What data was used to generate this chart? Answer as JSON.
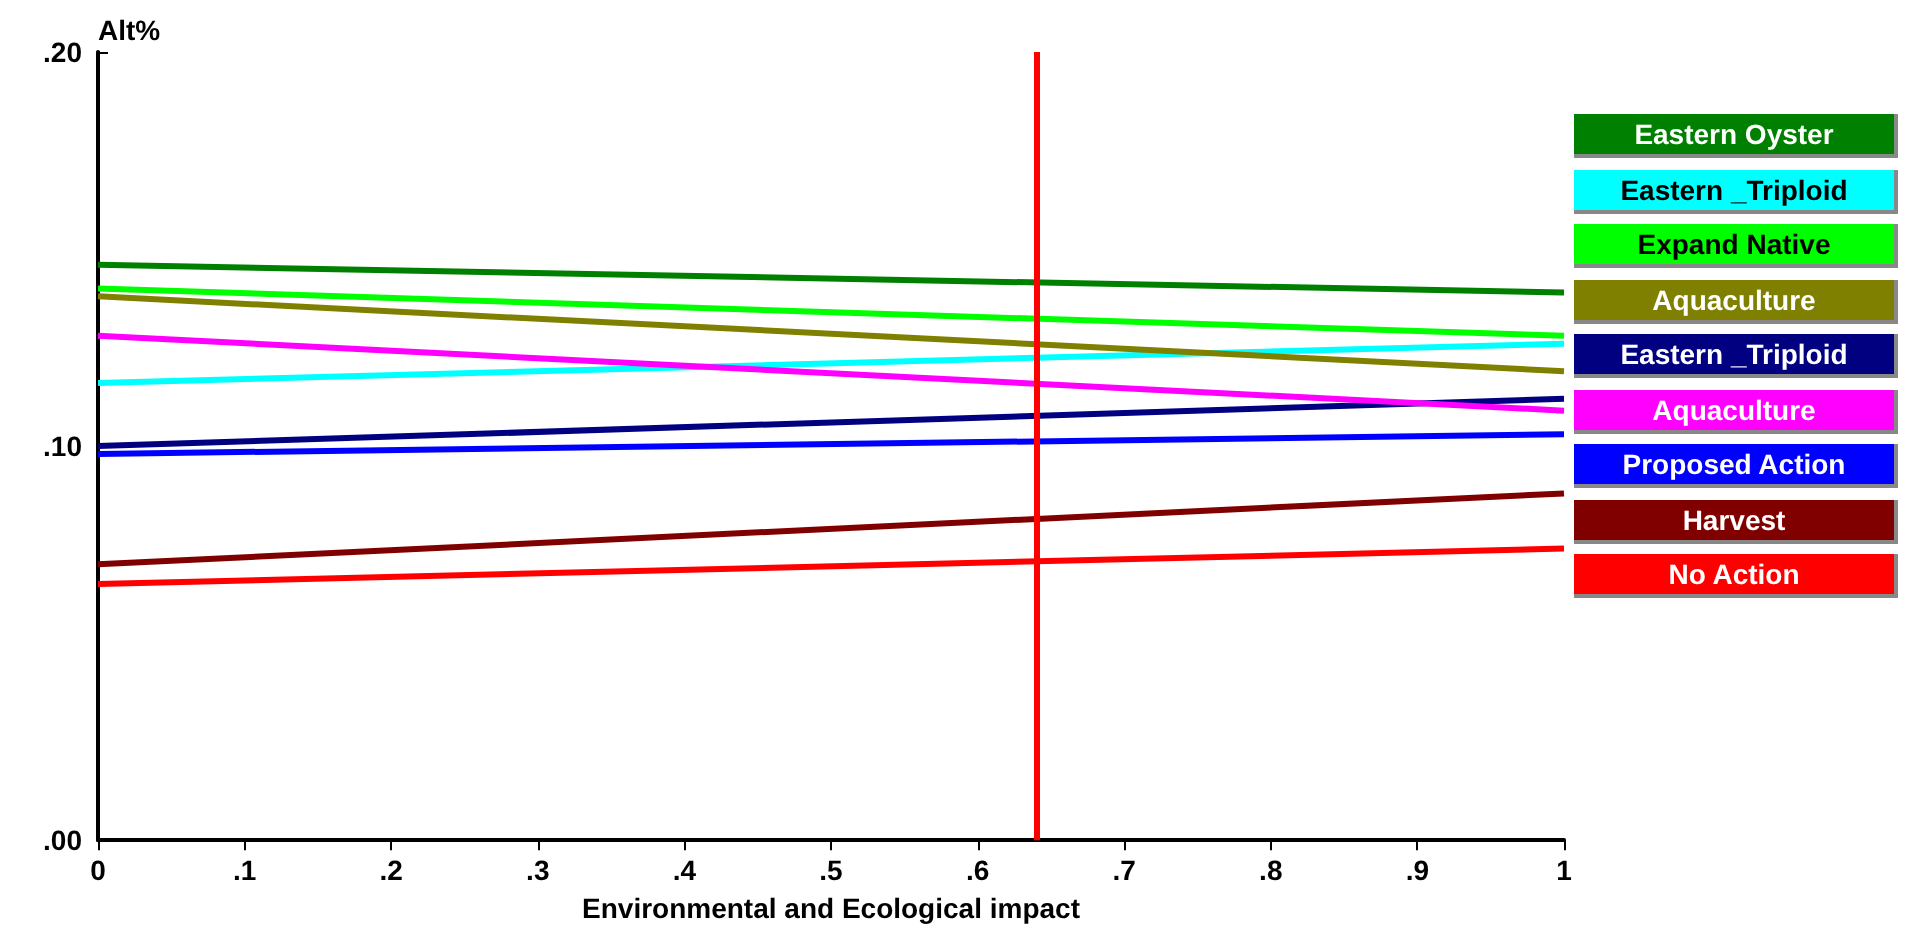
{
  "chart_data": {
    "type": "line",
    "ylabel": "Alt%",
    "xlabel": "Environmental and Ecological impact",
    "x": [
      0,
      1
    ],
    "series": [
      {
        "name": "Eastern Oyster",
        "color": "#008000",
        "values": [
          0.146,
          0.139
        ]
      },
      {
        "name": "Eastern _Triploid",
        "color": "#00ffff",
        "values": [
          0.116,
          0.126
        ]
      },
      {
        "name": "Expand Native",
        "color": "#00ff00",
        "values": [
          0.14,
          0.128
        ]
      },
      {
        "name": "Aquaculture",
        "color": "#808000",
        "values": [
          0.138,
          0.119
        ]
      },
      {
        "name": "Eastern _Triploid",
        "color": "#000080",
        "values": [
          0.1,
          0.112
        ]
      },
      {
        "name": "Aquaculture",
        "color": "#ff00ff",
        "values": [
          0.128,
          0.109
        ]
      },
      {
        "name": "Proposed Action",
        "color": "#0000ff",
        "values": [
          0.098,
          0.103
        ]
      },
      {
        "name": "Harvest",
        "color": "#800000",
        "values": [
          0.07,
          0.088
        ]
      },
      {
        "name": "No Action",
        "color": "#ff0000",
        "values": [
          0.065,
          0.074
        ]
      }
    ],
    "xlim": [
      0,
      1
    ],
    "ylim": [
      0,
      0.2
    ],
    "xticks": [
      0,
      {
        "value": 0.1,
        "label": ".1"
      },
      {
        "value": 0.2,
        "label": ".2"
      },
      {
        "value": 0.3,
        "label": ".3"
      },
      {
        "value": 0.4,
        "label": ".4"
      },
      {
        "value": 0.5,
        "label": ".5"
      },
      {
        "value": 0.6,
        "label": ".6"
      },
      {
        "value": 0.7,
        "label": ".7"
      },
      {
        "value": 0.8,
        "label": ".8"
      },
      {
        "value": 0.9,
        "label": ".9"
      },
      1
    ],
    "yticks": [
      {
        "value": 0,
        "label": ".00"
      },
      {
        "value": 0.1,
        "label": ".10"
      },
      {
        "value": 0.2,
        "label": ".20"
      }
    ],
    "ref_lines": [
      {
        "axis": "x",
        "value": 0.64,
        "color": "#ff0000"
      }
    ],
    "grid": false,
    "legend": "right",
    "marker": "none",
    "line_style": "solid"
  }
}
